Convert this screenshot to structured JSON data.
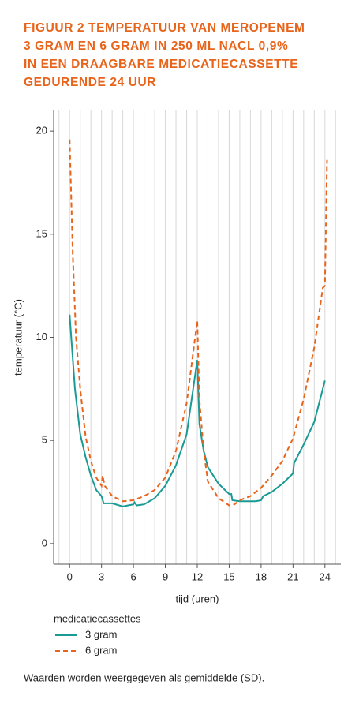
{
  "chart_data": {
    "type": "line",
    "title": [
      "FIGUUR 2 TEMPERATUUR VAN MEROPENEM",
      "3 GRAM EN 6 GRAM IN 250 ML NACL 0,9%",
      "IN EEN DRAAGBARE MEDICATIECASSETTE",
      "GEDURENDE 24 UUR"
    ],
    "xlabel": "tijd (uren)",
    "ylabel": "temperatuur (°C)",
    "legend_title": "medicatiecassettes",
    "note": "Waarden worden weergegeven als gemiddelde (SD).",
    "xlim": [
      -1.5,
      25.5
    ],
    "xticks": [
      0,
      3,
      6,
      9,
      12,
      15,
      18,
      21,
      24
    ],
    "ylim": [
      -1,
      21
    ],
    "yticks": [
      0,
      5,
      10,
      15,
      20
    ],
    "grid": true,
    "series": [
      {
        "name": "3 gram",
        "color": "#1a9a94",
        "dash": false,
        "x": [
          0,
          0.5,
          1,
          1.5,
          2,
          2.5,
          3,
          3.2,
          4,
          5,
          5.5,
          6,
          6.1,
          6.3,
          7,
          8,
          9,
          10,
          11,
          12,
          12.2,
          12.6,
          13,
          14,
          15,
          15.2,
          15.3,
          16,
          17,
          17.5,
          18,
          18.2,
          19,
          20,
          21,
          21.1,
          22,
          23,
          24
        ],
        "values": [
          11.1,
          7.5,
          5.3,
          4.2,
          3.3,
          2.6,
          2.3,
          1.95,
          1.95,
          1.8,
          1.85,
          1.9,
          2.0,
          1.85,
          1.9,
          2.2,
          2.8,
          3.8,
          5.3,
          8.9,
          5.8,
          4.5,
          3.7,
          2.9,
          2.4,
          2.4,
          2.1,
          2.05,
          2.05,
          2.05,
          2.1,
          2.3,
          2.5,
          2.9,
          3.4,
          3.9,
          4.8,
          5.9,
          7.9
        ]
      },
      {
        "name": "6 gram",
        "color": "#e8641b",
        "dash": true,
        "x": [
          0,
          0.3,
          0.6,
          1,
          1.5,
          2,
          2.5,
          3,
          3.1,
          3.3,
          4,
          5,
          6,
          7,
          8,
          9,
          10,
          11,
          12,
          12.2,
          12.6,
          13,
          14,
          15,
          15.5,
          16,
          17,
          18,
          19,
          20,
          21,
          22,
          23,
          23.8,
          24,
          24.2
        ],
        "values": [
          19.6,
          14,
          10,
          7.5,
          5.2,
          4.0,
          3.2,
          2.8,
          3.3,
          2.8,
          2.3,
          2.05,
          2.1,
          2.3,
          2.6,
          3.2,
          4.5,
          6.8,
          10.8,
          7,
          4.5,
          3.0,
          2.2,
          1.85,
          1.9,
          2.1,
          2.3,
          2.7,
          3.3,
          4.0,
          5.1,
          7.0,
          9.5,
          12.4,
          12.5,
          18.6
        ]
      }
    ]
  }
}
